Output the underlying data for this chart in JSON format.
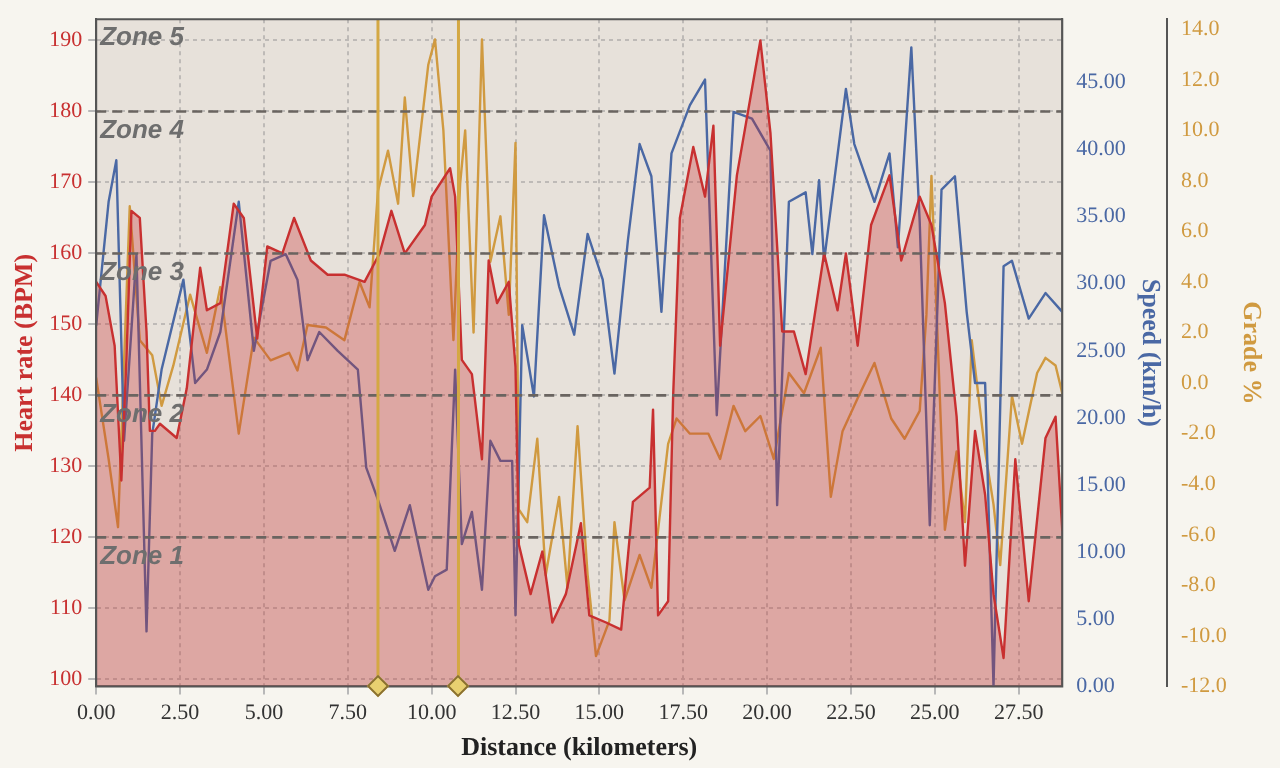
{
  "chart_data": {
    "type": "area",
    "xlabel": "Distance (kilometers)",
    "ylabel": "Heart rate (BPM)",
    "y2label": "Speed (km/h)",
    "y3label": "Grade %",
    "xlim": [
      0,
      28.8
    ],
    "xticks": [
      {
        "value": 0,
        "label": "0.00"
      },
      {
        "value": 2.5,
        "label": "2.50"
      },
      {
        "value": 5,
        "label": "5.00"
      },
      {
        "value": 7.5,
        "label": "7.50"
      },
      {
        "value": 10,
        "label": "10.00"
      },
      {
        "value": 12.5,
        "label": "12.50"
      },
      {
        "value": 15,
        "label": "15.00"
      },
      {
        "value": 17.5,
        "label": "17.50"
      },
      {
        "value": 20,
        "label": "20.00"
      },
      {
        "value": 22.5,
        "label": "22.50"
      },
      {
        "value": 25,
        "label": "25.00"
      },
      {
        "value": 27.5,
        "label": "27.50"
      }
    ],
    "ylim": [
      99,
      193
    ],
    "yticks": [
      100,
      110,
      120,
      130,
      140,
      150,
      160,
      170,
      180,
      190
    ],
    "y2lim": [
      0,
      49.7
    ],
    "y2ticks": [
      {
        "value": 0,
        "label": "0.00"
      },
      {
        "value": 5,
        "label": "5.00"
      },
      {
        "value": 10,
        "label": "10.00"
      },
      {
        "value": 15,
        "label": "15.00"
      },
      {
        "value": 20,
        "label": "20.00"
      },
      {
        "value": 25,
        "label": "25.00"
      },
      {
        "value": 30,
        "label": "30.00"
      },
      {
        "value": 35,
        "label": "35.00"
      },
      {
        "value": 40,
        "label": "40.00"
      },
      {
        "value": 45,
        "label": "45.00"
      }
    ],
    "y3lim": [
      -12,
      14.4
    ],
    "y3ticks": [
      {
        "value": -12,
        "label": "-12.0"
      },
      {
        "value": -10,
        "label": "-10.0"
      },
      {
        "value": -8,
        "label": "-8.0"
      },
      {
        "value": -6,
        "label": "-6.0"
      },
      {
        "value": -4,
        "label": "-4.0"
      },
      {
        "value": -2,
        "label": "-2.0"
      },
      {
        "value": 0,
        "label": "0.0"
      },
      {
        "value": 2,
        "label": "2.0"
      },
      {
        "value": 4,
        "label": "4.0"
      },
      {
        "value": 6,
        "label": "6.0"
      },
      {
        "value": 8,
        "label": "8.0"
      },
      {
        "value": 10,
        "label": "10.0"
      },
      {
        "value": 12,
        "label": "12.0"
      },
      {
        "value": 14,
        "label": "14.0"
      }
    ],
    "grid": true,
    "legend": false,
    "bands": [
      {
        "axis": "y",
        "from": 99,
        "to": 120,
        "label": "Zone 1",
        "color": "#c8bcb4"
      },
      {
        "axis": "y",
        "from": 120,
        "to": 140,
        "label": "Zone 2",
        "color": "#c8bcb4"
      },
      {
        "axis": "y",
        "from": 140,
        "to": 160,
        "label": "Zone 3",
        "color": "#c8bcb4"
      },
      {
        "axis": "y",
        "from": 160,
        "to": 180,
        "label": "Zone 4",
        "color": "#c8bcb4"
      },
      {
        "axis": "y",
        "from": 180,
        "to": 193,
        "label": "Zone 5",
        "color": "#c8bcb4"
      }
    ],
    "ref_lines": [
      {
        "axis": "x",
        "value": 8.4,
        "label": null,
        "color": "#d4a843"
      },
      {
        "axis": "x",
        "value": 10.8,
        "label": null,
        "color": "#d4a843"
      }
    ],
    "series": [
      {
        "type": "area",
        "axis": "y",
        "color": "#c83030",
        "x": [
          0,
          0.28,
          0.55,
          0.75,
          0.9,
          1.05,
          1.3,
          1.5,
          1.6,
          1.75,
          1.9,
          2.4,
          2.7,
          3.1,
          3.3,
          3.7,
          4.1,
          4.4,
          4.8,
          5.1,
          5.55,
          5.9,
          6.4,
          6.9,
          7.4,
          8.0,
          8.45,
          8.8,
          9.2,
          9.8,
          10,
          10.55,
          10.7,
          10.9,
          11.2,
          11.5,
          11.7,
          11.95,
          12.3,
          12.5,
          12.6,
          12.95,
          13.3,
          13.6,
          14.0,
          14.45,
          14.7,
          15.2,
          15.65,
          16.0,
          16.5,
          16.6,
          16.75,
          17.05,
          17.2,
          17.4,
          17.8,
          18.15,
          18.4,
          18.6,
          19.1,
          19.8,
          20.1,
          20.45,
          20.8,
          21.15,
          21.7,
          22.1,
          22.35,
          22.7,
          23.1,
          23.65,
          24.0,
          24.55,
          24.9,
          25.3,
          25.65,
          25.9,
          26.2,
          26.5,
          26.75,
          27.05,
          27.4,
          27.8,
          28.3,
          28.6,
          28.8
        ],
        "values": [
          156,
          154,
          147,
          128,
          145,
          166,
          165,
          149,
          135,
          135,
          136,
          134,
          141,
          158,
          152,
          153,
          167,
          165,
          148,
          161,
          160,
          165,
          159,
          157,
          157,
          156,
          160,
          166,
          160,
          164,
          168,
          172,
          168,
          145,
          143,
          131,
          159,
          153,
          156,
          144,
          119,
          112,
          118,
          108,
          112,
          122,
          109,
          108,
          107,
          125,
          127,
          138,
          109,
          111,
          140,
          165,
          175,
          168,
          178,
          147,
          171,
          190,
          177,
          149,
          149,
          143,
          160,
          152,
          160,
          147,
          164,
          171,
          159,
          168,
          164,
          153,
          137,
          116,
          135,
          126,
          112,
          103,
          131,
          111,
          134,
          137,
          121
        ]
      },
      {
        "type": "line",
        "axis": "y2",
        "color": "#4a68a4",
        "x": [
          0,
          0.37,
          0.6,
          0.83,
          1.2,
          1.5,
          1.67,
          1.95,
          2.6,
          2.95,
          3.3,
          3.7,
          4.25,
          4.7,
          5.2,
          5.65,
          6.0,
          6.3,
          6.65,
          7.2,
          7.8,
          8.05,
          8.4,
          8.9,
          9.35,
          9.9,
          10.1,
          10.45,
          10.7,
          10.9,
          11.2,
          11.5,
          11.75,
          12.05,
          12.4,
          12.5,
          12.7,
          13.05,
          13.35,
          13.8,
          14.25,
          14.65,
          15.1,
          15.45,
          15.85,
          16.2,
          16.55,
          16.85,
          17.15,
          17.7,
          18.15,
          18.5,
          19.0,
          19.55,
          20.1,
          20.3,
          20.65,
          21.15,
          21.35,
          21.55,
          21.7,
          22.35,
          22.6,
          23.2,
          23.65,
          23.9,
          24.3,
          24.55,
          24.85,
          25.2,
          25.6,
          25.95,
          26.2,
          26.5,
          26.75,
          27.05,
          27.3,
          27.8,
          28.3,
          28.8
        ],
        "values": [
          26.9,
          36.1,
          39.2,
          18.3,
          32.2,
          4.1,
          18.8,
          23.6,
          30.3,
          22.6,
          23.6,
          26.4,
          36.1,
          25.0,
          31.7,
          32.2,
          30.3,
          24.3,
          26.4,
          25.0,
          23.6,
          16.3,
          13.9,
          10.1,
          13.5,
          7.2,
          8.2,
          8.7,
          23.6,
          10.6,
          13.0,
          7.2,
          18.3,
          16.8,
          16.8,
          5.3,
          26.9,
          21.6,
          35.1,
          29.8,
          26.2,
          33.7,
          30.3,
          23.3,
          33.2,
          40.4,
          38.0,
          27.9,
          39.7,
          43.3,
          45.2,
          20.2,
          42.8,
          42.3,
          39.9,
          13.5,
          36.1,
          36.8,
          32.2,
          37.7,
          31.7,
          44.5,
          40.4,
          36.1,
          39.7,
          32.7,
          47.6,
          34.6,
          12.0,
          37.0,
          38.0,
          27.9,
          22.6,
          22.6,
          0,
          31.3,
          31.7,
          27.4,
          29.3,
          27.9
        ]
      },
      {
        "type": "line",
        "axis": "y3",
        "color": "#d09a40",
        "x": [
          0,
          0.37,
          0.65,
          1.0,
          1.3,
          1.67,
          1.95,
          2.3,
          2.8,
          3.3,
          3.7,
          4.25,
          4.7,
          5.2,
          5.75,
          6.0,
          6.3,
          6.85,
          7.4,
          7.85,
          8.15,
          8.4,
          8.7,
          9.0,
          9.2,
          9.45,
          9.9,
          10.1,
          10.35,
          10.65,
          10.85,
          11.0,
          11.25,
          11.5,
          11.75,
          12.05,
          12.3,
          12.5,
          12.6,
          12.85,
          13.15,
          13.4,
          13.8,
          14.05,
          14.35,
          14.65,
          14.9,
          15.3,
          15.45,
          15.75,
          16.2,
          16.55,
          17.05,
          17.3,
          17.7,
          18.25,
          18.6,
          19.0,
          19.35,
          19.8,
          20.2,
          20.65,
          21.1,
          21.6,
          21.9,
          22.25,
          22.7,
          23.2,
          23.7,
          24.1,
          24.55,
          24.75,
          24.9,
          25.1,
          25.3,
          25.65,
          25.9,
          26.1,
          26.5,
          26.75,
          26.95,
          27.3,
          27.6,
          28.05,
          28.3,
          28.6,
          28.8
        ],
        "values": [
          0.2,
          -3.0,
          -5.7,
          7.0,
          1.7,
          1.1,
          -0.9,
          0.7,
          3.5,
          1.2,
          3.8,
          -2.0,
          1.8,
          0.9,
          1.2,
          0.5,
          2.3,
          2.2,
          1.7,
          4.0,
          3.0,
          7.6,
          9.2,
          7.1,
          11.3,
          7.4,
          12.6,
          13.6,
          10.0,
          1.7,
          7.9,
          10.0,
          2.0,
          13.6,
          4.8,
          6.6,
          2.7,
          9.5,
          -5.0,
          -5.5,
          -2.2,
          -7.6,
          -4.5,
          -8.1,
          -1.7,
          -7.6,
          -10.8,
          -9.4,
          -5.5,
          -8.6,
          -6.8,
          -8.1,
          -2.4,
          -1.4,
          -2.0,
          -2.0,
          -3.0,
          -0.9,
          -1.9,
          -1.3,
          -3.0,
          0.4,
          -0.4,
          1.4,
          -4.5,
          -1.9,
          -0.6,
          0.8,
          -1.4,
          -2.2,
          -1.1,
          2.7,
          8.2,
          1.2,
          -5.8,
          -2.7,
          -5.5,
          1.7,
          -2.7,
          -4.8,
          -7.2,
          -0.5,
          -2.4,
          0.4,
          1.0,
          0.7,
          -0.4
        ]
      }
    ]
  }
}
